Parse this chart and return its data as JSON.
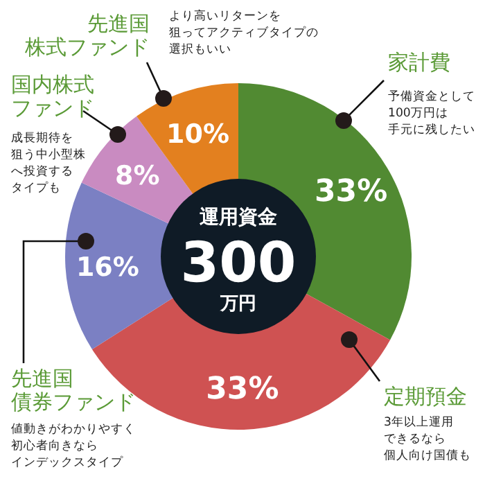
{
  "chart_data": {
    "type": "donut",
    "title": "運用資金",
    "categories": [
      "家計費",
      "定期預金",
      "先進国債券ファンド",
      "国内株式ファンド",
      "先進国株式ファンド"
    ],
    "values": [
      33,
      33,
      16,
      8,
      10
    ],
    "value_labels": [
      "33%",
      "33%",
      "16%",
      "8%",
      "10%"
    ],
    "colors": [
      "#518a32",
      "#cf5252",
      "#7b80c3",
      "#c98bc1",
      "#e3801f"
    ],
    "annotations": [
      "予備資金として100万円は手元に残したい",
      "3年以上運用できるなら個人向け国債も",
      "値動きがわかりやすく初心者向きならインデックスタイプ",
      "成長期待を狙う中小型株へ投資するタイプも",
      "より高いリターンを狙ってアクティブタイプの選択もいい",
      "300",
      "万円"
    ]
  }
}
